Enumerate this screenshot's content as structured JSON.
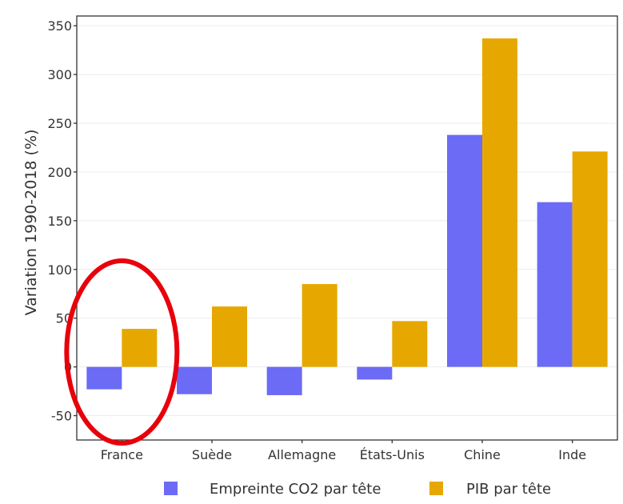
{
  "chart_data": {
    "type": "bar",
    "title": "",
    "xlabel": "",
    "ylabel": "Variation 1990-2018 (%)",
    "ylim": [
      -75,
      360
    ],
    "yticks": [
      -50,
      0,
      50,
      100,
      150,
      200,
      250,
      300,
      350
    ],
    "ytick_labels": [
      "-50",
      "0",
      "50",
      "100",
      "150",
      "200",
      "250",
      "300",
      "350"
    ],
    "grid": "horizontal",
    "legend_position": "bottom",
    "categories": [
      "France",
      "Suède",
      "Allemagne",
      "États-Unis",
      "Chine",
      "Inde"
    ],
    "series": [
      {
        "name": "Empreinte CO2 par tête",
        "color": "#6b6bf5",
        "values": [
          -23,
          -28,
          -29,
          -13,
          238,
          169
        ]
      },
      {
        "name": "PIB par tête",
        "color": "#e6a800",
        "values": [
          39,
          62,
          85,
          47,
          337,
          221
        ]
      }
    ],
    "annotation": {
      "shape": "ellipse",
      "color": "#e8000b",
      "target_category": "France"
    }
  }
}
